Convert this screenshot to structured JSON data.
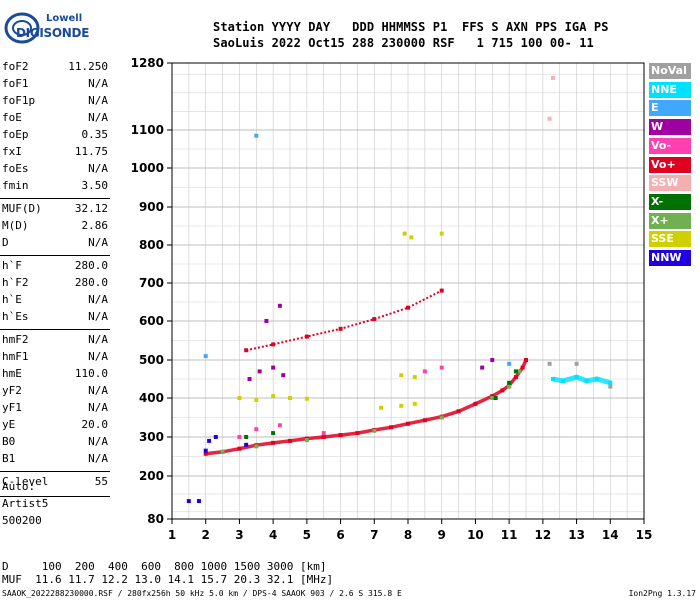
{
  "logo": {
    "line1": "Lowell",
    "line2": "DIGISONDE"
  },
  "header": {
    "line1": "Station YYYY DAY   DDD HHMMSS P1  FFS S AXN PPS IGA PS",
    "line2": "SaoLuis 2022 Oct15 288 230000 RSF   1 715 100 00- 11"
  },
  "params": [
    {
      "k": "foF2",
      "v": "11.250"
    },
    {
      "k": "foF1",
      "v": "N/A"
    },
    {
      "k": "foF1p",
      "v": "N/A"
    },
    {
      "k": "foE",
      "v": "N/A"
    },
    {
      "k": "foEp",
      "v": "0.35"
    },
    {
      "k": "fxI",
      "v": "11.75"
    },
    {
      "k": "foEs",
      "v": "N/A"
    },
    {
      "k": "fmin",
      "v": "3.50"
    },
    {
      "k": "MUF(D)",
      "v": "32.12"
    },
    {
      "k": "M(D)",
      "v": "2.86"
    },
    {
      "k": "D",
      "v": "N/A"
    },
    {
      "k": "h`F",
      "v": "280.0"
    },
    {
      "k": "h`F2",
      "v": "280.0"
    },
    {
      "k": "h`E",
      "v": "N/A"
    },
    {
      "k": "h`Es",
      "v": "N/A"
    },
    {
      "k": "hmF2",
      "v": "N/A"
    },
    {
      "k": "hmF1",
      "v": "N/A"
    },
    {
      "k": "hmE",
      "v": "110.0"
    },
    {
      "k": "yF2",
      "v": "N/A"
    },
    {
      "k": "yF1",
      "v": "N/A"
    },
    {
      "k": "yE",
      "v": "20.0"
    },
    {
      "k": "B0",
      "v": "N/A"
    },
    {
      "k": "B1",
      "v": "N/A"
    },
    {
      "k": "C-level",
      "v": "55"
    }
  ],
  "auto": {
    "line1": "Auto:",
    "line2": "Artist5",
    "line3": "500200"
  },
  "legend": [
    {
      "label": "NoVal",
      "bg": "#a0a0a0",
      "fg": "#ffffff"
    },
    {
      "label": "NNE",
      "bg": "#00e0ff",
      "fg": "#ffffff"
    },
    {
      "label": "E",
      "bg": "#40a8ff",
      "fg": "#ffffff"
    },
    {
      "label": "W",
      "bg": "#a000a0",
      "fg": "#ffffff"
    },
    {
      "label": "Vo-",
      "bg": "#ff40b0",
      "fg": "#ffffff"
    },
    {
      "label": "Vo+",
      "bg": "#e00020",
      "fg": "#ffffff"
    },
    {
      "label": "SSW",
      "bg": "#f4b0b0",
      "fg": "#ffffff"
    },
    {
      "label": "X-",
      "bg": "#007000",
      "fg": "#ffffff"
    },
    {
      "label": "X+",
      "bg": "#70b050",
      "fg": "#ffffff"
    },
    {
      "label": "SSE",
      "bg": "#d0d000",
      "fg": "#ffffff"
    },
    {
      "label": "NNW",
      "bg": "#2000e0",
      "fg": "#ffffff"
    }
  ],
  "footer": {
    "line1": "D     100  200  400  600  800 1000 1500 3000 [km]",
    "line2": "MUF  11.6 11.7 12.2 13.0 14.1 15.7 20.3 32.1 [MHz]",
    "line3": "SAAOK_2022288230000.RSF / 280fx256h 50 kHz 5.0 km / DPS-4 SAAOK 903 / 2.6 S 315.8 E",
    "version": "Ion2Png 1.3.17"
  },
  "chart_data": {
    "type": "scatter",
    "xlim": [
      1,
      15
    ],
    "ylim": [
      80,
      1280
    ],
    "xticks": [
      1,
      2,
      3,
      4,
      5,
      6,
      7,
      8,
      9,
      10,
      11,
      12,
      13,
      14,
      15
    ],
    "yticks": [
      80,
      200,
      300,
      400,
      500,
      600,
      700,
      800,
      900,
      1000,
      1100,
      1280
    ],
    "grid": true,
    "legend_placement": "right",
    "y_scale": "nonlinear",
    "series": [
      {
        "name": "Vo+",
        "color": "#e00020",
        "points": [
          [
            2.0,
            257
          ],
          [
            2.5,
            262
          ],
          [
            3.0,
            270
          ],
          [
            3.5,
            279
          ],
          [
            4.0,
            285
          ],
          [
            4.5,
            290
          ],
          [
            5.0,
            296
          ],
          [
            5.5,
            300
          ],
          [
            6.0,
            305
          ],
          [
            6.5,
            310
          ],
          [
            7.0,
            318
          ],
          [
            7.5,
            325
          ],
          [
            8.0,
            334
          ],
          [
            8.5,
            343
          ],
          [
            9.0,
            352
          ],
          [
            9.5,
            366
          ],
          [
            10.0,
            385
          ],
          [
            10.5,
            405
          ],
          [
            10.8,
            420
          ],
          [
            11.0,
            433
          ],
          [
            11.2,
            455
          ],
          [
            11.4,
            480
          ],
          [
            11.5,
            500
          ],
          [
            3.2,
            525
          ],
          [
            4.0,
            540
          ],
          [
            5.0,
            560
          ],
          [
            6.0,
            580
          ],
          [
            7.0,
            605
          ],
          [
            8.0,
            635
          ],
          [
            9.0,
            680
          ]
        ]
      },
      {
        "name": "X+",
        "color": "#70b050",
        "points": [
          [
            2.5,
            262
          ],
          [
            3.5,
            276
          ],
          [
            5.0,
            292
          ],
          [
            7.0,
            316
          ],
          [
            9.0,
            350
          ],
          [
            10.5,
            400
          ],
          [
            11.0,
            430
          ],
          [
            11.3,
            470
          ]
        ]
      },
      {
        "name": "X-",
        "color": "#007000",
        "points": [
          [
            3.2,
            300
          ],
          [
            4.0,
            310
          ],
          [
            10.6,
            400
          ],
          [
            11.0,
            440
          ],
          [
            11.2,
            470
          ]
        ]
      },
      {
        "name": "W",
        "color": "#a000a0",
        "points": [
          [
            3.3,
            450
          ],
          [
            3.6,
            470
          ],
          [
            4.0,
            480
          ],
          [
            4.3,
            460
          ],
          [
            3.8,
            600
          ],
          [
            4.2,
            640
          ],
          [
            10.2,
            480
          ],
          [
            10.5,
            500
          ]
        ]
      },
      {
        "name": "Vo-",
        "color": "#ff40b0",
        "points": [
          [
            3.0,
            300
          ],
          [
            3.5,
            320
          ],
          [
            4.2,
            330
          ],
          [
            5.5,
            310
          ],
          [
            8.5,
            470
          ],
          [
            9.0,
            480
          ]
        ]
      },
      {
        "name": "SSE",
        "color": "#d0d000",
        "points": [
          [
            3.0,
            400
          ],
          [
            3.5,
            395
          ],
          [
            4.0,
            405
          ],
          [
            4.5,
            400
          ],
          [
            5.0,
            398
          ],
          [
            7.2,
            375
          ],
          [
            7.8,
            380
          ],
          [
            8.2,
            385
          ],
          [
            7.8,
            460
          ],
          [
            8.2,
            455
          ],
          [
            7.9,
            830
          ],
          [
            8.1,
            820
          ],
          [
            9.0,
            830
          ]
        ]
      },
      {
        "name": "NNE",
        "color": "#00e0ff",
        "points": [
          [
            12.3,
            450
          ],
          [
            12.6,
            445
          ],
          [
            13.0,
            455
          ],
          [
            13.3,
            445
          ],
          [
            13.6,
            450
          ],
          [
            14.0,
            440
          ]
        ]
      },
      {
        "name": "NNW",
        "color": "#2000e0",
        "points": [
          [
            1.5,
            130
          ],
          [
            1.8,
            130
          ],
          [
            2.0,
            265
          ],
          [
            2.1,
            290
          ],
          [
            2.3,
            300
          ],
          [
            3.2,
            280
          ]
        ]
      },
      {
        "name": "E",
        "color": "#40a8ff",
        "points": [
          [
            2.0,
            510
          ],
          [
            3.5,
            1085
          ],
          [
            11.0,
            490
          ]
        ]
      },
      {
        "name": "SSW",
        "color": "#f4b0b0",
        "points": [
          [
            12.3,
            1240
          ],
          [
            12.2,
            1130
          ]
        ]
      },
      {
        "name": "NoVal",
        "color": "#a0a0a0",
        "points": [
          [
            12.2,
            490
          ],
          [
            13.0,
            490
          ],
          [
            14.0,
            430
          ]
        ]
      }
    ]
  }
}
